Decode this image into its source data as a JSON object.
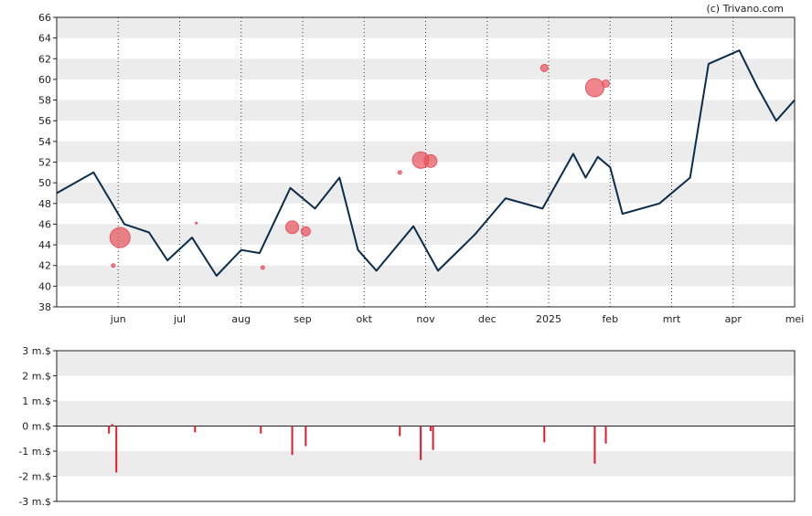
{
  "credit": "(c) Trivano.com",
  "chart_data": [
    {
      "type": "line",
      "x_ticks": [
        "jun",
        "jul",
        "aug",
        "sep",
        "okt",
        "nov",
        "dec",
        "2025",
        "feb",
        "mrt",
        "apr",
        "mei"
      ],
      "ylim": [
        38,
        66
      ],
      "y_ticks": [
        38,
        40,
        42,
        44,
        46,
        48,
        50,
        52,
        54,
        56,
        58,
        60,
        62,
        64,
        66
      ],
      "grid": "alternating horizontal bands + dotted vertical month lines",
      "line_color": "#0b2d4a",
      "marker_color": "#e8525c",
      "series": [
        {
          "x": [
            0.0,
            0.6,
            1.1,
            1.5,
            1.8,
            2.2,
            2.6,
            3.0,
            3.3,
            3.8,
            4.2,
            4.6,
            4.9,
            5.2,
            5.8,
            6.2,
            6.8,
            7.3,
            7.9,
            8.4,
            8.6,
            8.8,
            9.0,
            9.2,
            9.8,
            10.3,
            10.6,
            11.1,
            11.4,
            11.7,
            12.0
          ],
          "y": [
            49.0,
            51.0,
            46.0,
            45.2,
            42.5,
            44.7,
            41.0,
            43.5,
            43.2,
            49.5,
            47.5,
            50.5,
            43.5,
            41.5,
            45.8,
            41.5,
            45.0,
            48.5,
            47.5,
            52.8,
            50.5,
            52.5,
            51.5,
            47.0,
            48.0,
            50.5,
            61.5,
            62.8,
            59.2,
            56.0,
            58.0
          ]
        }
      ],
      "markers": [
        {
          "x": 0.92,
          "y": 42.0,
          "size": 2
        },
        {
          "x": 1.03,
          "y": 44.7,
          "size": 11
        },
        {
          "x": 2.27,
          "y": 46.1,
          "size": 1
        },
        {
          "x": 3.35,
          "y": 41.8,
          "size": 2
        },
        {
          "x": 3.83,
          "y": 45.7,
          "size": 7
        },
        {
          "x": 4.05,
          "y": 45.3,
          "size": 5
        },
        {
          "x": 5.58,
          "y": 51.0,
          "size": 2
        },
        {
          "x": 5.92,
          "y": 52.2,
          "size": 9
        },
        {
          "x": 6.08,
          "y": 52.1,
          "size": 7
        },
        {
          "x": 7.93,
          "y": 61.1,
          "size": 4
        },
        {
          "x": 8.75,
          "y": 59.2,
          "size": 10
        },
        {
          "x": 8.93,
          "y": 59.6,
          "size": 4
        }
      ]
    },
    {
      "type": "bar",
      "ylim": [
        -3,
        3
      ],
      "y_ticks": [
        "3 m.$",
        "2 m.$",
        "1 m.$",
        "0 m.$",
        "-1 m.$",
        "-2 m.$",
        "-3 m.$"
      ],
      "bar_color": "#e31a2d",
      "x": [
        0.85,
        0.9,
        0.97,
        2.25,
        3.32,
        3.83,
        4.05,
        5.58,
        5.92,
        6.08,
        6.12,
        7.93,
        8.75,
        8.93
      ],
      "values": [
        -0.3,
        0.08,
        -1.85,
        -0.25,
        -0.3,
        -1.15,
        -0.8,
        -0.4,
        -1.35,
        -0.2,
        -0.95,
        -0.65,
        -1.5,
        -0.7
      ]
    }
  ]
}
